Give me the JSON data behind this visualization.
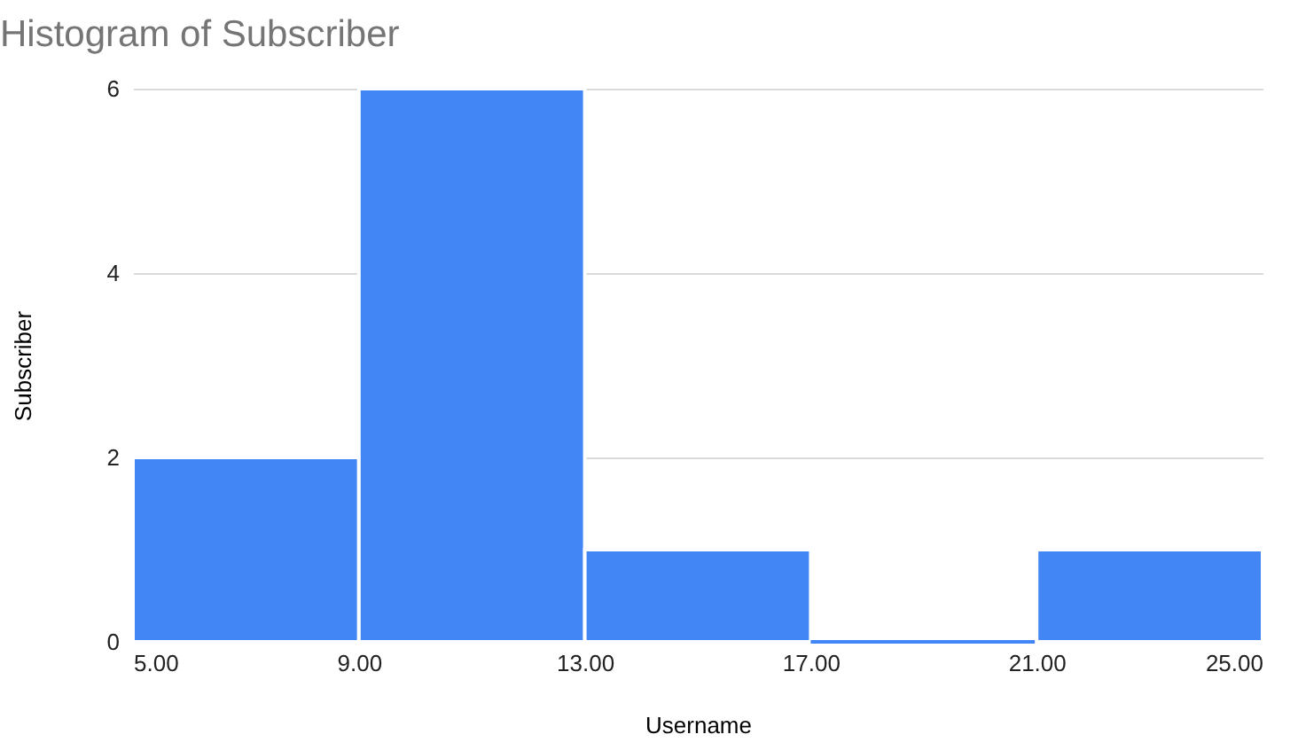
{
  "chart_data": {
    "type": "histogram",
    "title": "Histogram of Subscriber",
    "xlabel": "Username",
    "ylabel": "Subscriber",
    "bins": [
      5,
      9,
      13,
      17,
      21,
      25
    ],
    "values": [
      2,
      6,
      1,
      0,
      1
    ],
    "color": "#4285f4",
    "xlim": [
      5,
      25
    ],
    "xticks": [
      {
        "value": 5,
        "label": "5.00"
      },
      {
        "value": 9,
        "label": "9.00"
      },
      {
        "value": 13,
        "label": "13.00"
      },
      {
        "value": 17,
        "label": "17.00"
      },
      {
        "value": 21,
        "label": "21.00"
      },
      {
        "value": 25,
        "label": "25.00"
      }
    ],
    "ylim": [
      0,
      6
    ],
    "yticks": [
      0,
      2,
      4,
      6
    ],
    "grid": "y"
  }
}
